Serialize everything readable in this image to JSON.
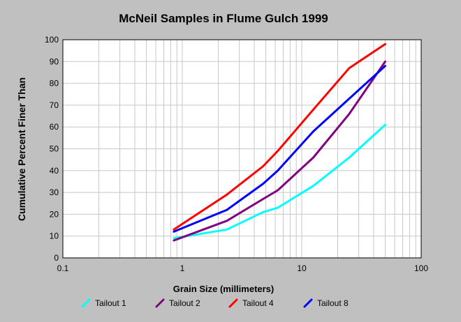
{
  "chart_data": {
    "type": "line",
    "title": "McNeil Samples in Flume Gulch 1999",
    "xlabel": "Grain Size (millimeters)",
    "ylabel": "Cumulative Percent Finer Than",
    "xscale": "log",
    "xlim": [
      0.1,
      100
    ],
    "ylim": [
      0,
      100
    ],
    "xticks": [
      "0.1",
      "1",
      "10",
      "100"
    ],
    "yticks": [
      "0",
      "10",
      "20",
      "30",
      "40",
      "50",
      "60",
      "70",
      "80",
      "90",
      "100"
    ],
    "grid": true,
    "legend_position": "bottom",
    "series": [
      {
        "name": "Tailout 1",
        "color": "#00ffff",
        "points": [
          [
            0.85,
            9
          ],
          [
            2.36,
            13
          ],
          [
            4.75,
            21
          ],
          [
            6.3,
            23
          ],
          [
            12.5,
            33
          ],
          [
            25,
            46
          ],
          [
            50,
            61
          ]
        ]
      },
      {
        "name": "Tailout 2",
        "color": "#800080",
        "points": [
          [
            0.85,
            8
          ],
          [
            2.36,
            17
          ],
          [
            4.75,
            27
          ],
          [
            6.3,
            31
          ],
          [
            12.5,
            46
          ],
          [
            25,
            66
          ],
          [
            50,
            90
          ]
        ]
      },
      {
        "name": "Tailout 4",
        "color": "#ff0000",
        "points": [
          [
            0.85,
            13
          ],
          [
            2.36,
            29
          ],
          [
            4.75,
            42
          ],
          [
            6.3,
            49
          ],
          [
            12.5,
            68
          ],
          [
            25,
            87
          ],
          [
            50,
            98
          ]
        ]
      },
      {
        "name": "Tailout 8",
        "color": "#0000ff",
        "points": [
          [
            0.85,
            12
          ],
          [
            2.36,
            22
          ],
          [
            4.75,
            34
          ],
          [
            6.3,
            40
          ],
          [
            12.5,
            58
          ],
          [
            25,
            73
          ],
          [
            50,
            88
          ]
        ]
      }
    ]
  }
}
